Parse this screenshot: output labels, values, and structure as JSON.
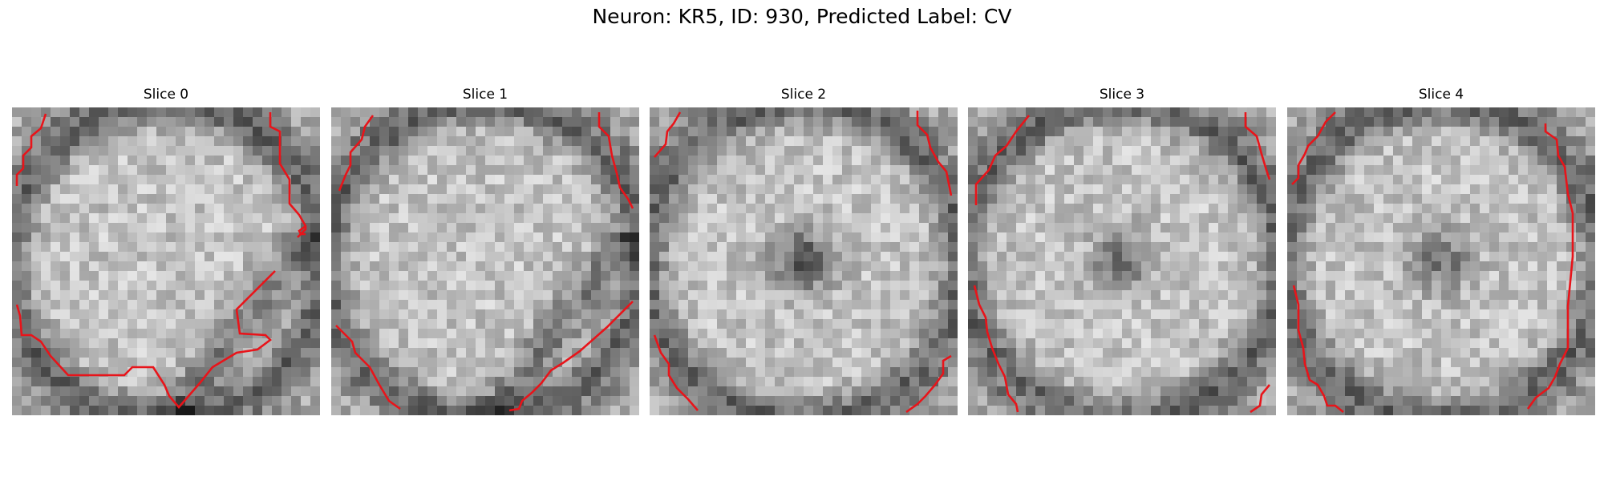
{
  "figure": {
    "title": "Neuron: KR5, ID: 930, Predicted Label: CV",
    "slices": [
      {
        "label": "Slice 0",
        "dark_angle": 1.5,
        "seed": 11
      },
      {
        "label": "Slice 1",
        "dark_angle": 0.9,
        "seed": 23
      },
      {
        "label": "Slice 2",
        "dark_angle": 0.0,
        "seed": 37
      },
      {
        "label": "Slice 3",
        "dark_angle": 0.0,
        "seed": 51
      },
      {
        "label": "Slice 4",
        "dark_angle": 0.0,
        "seed": 67
      }
    ],
    "contour_color": "#e8141a"
  }
}
